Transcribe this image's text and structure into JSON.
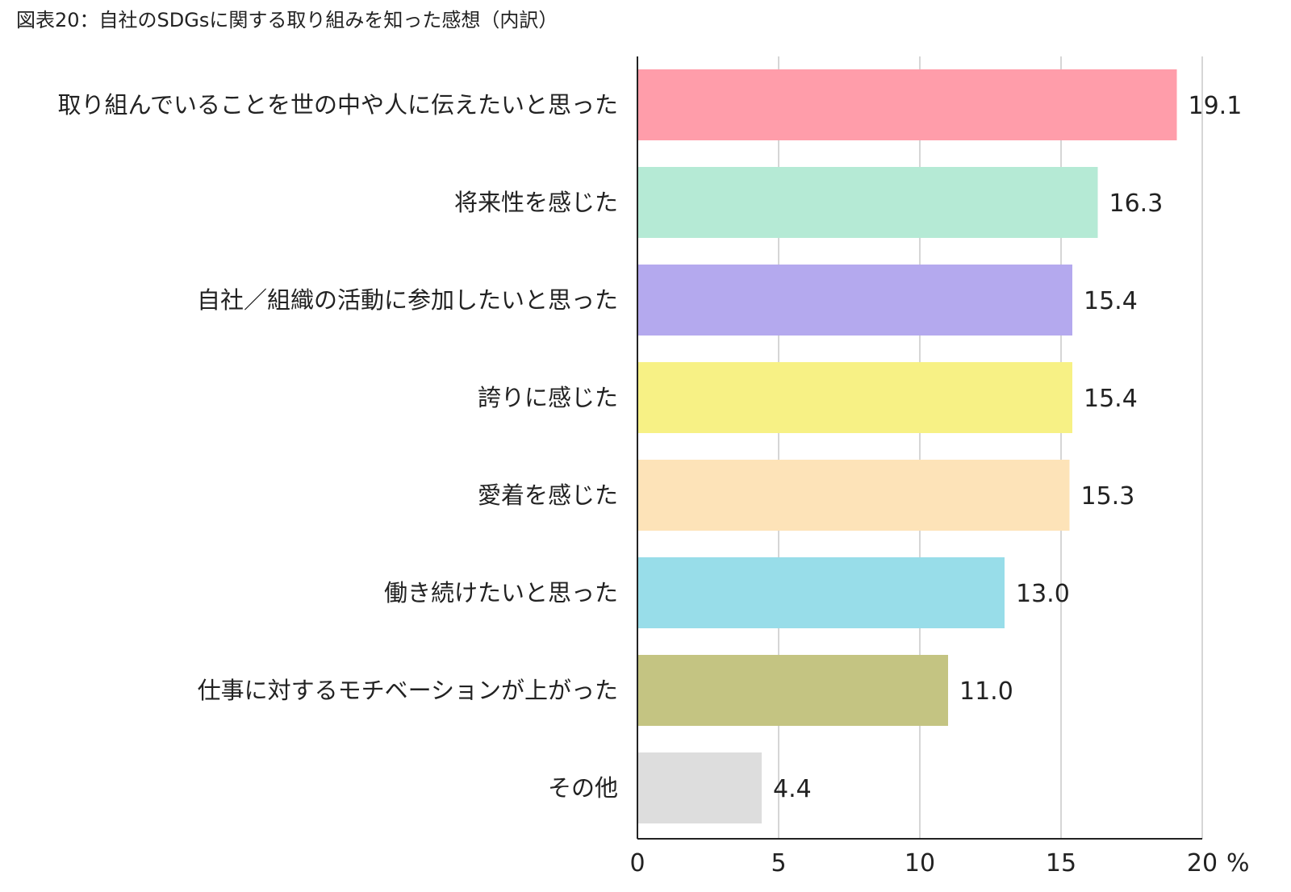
{
  "title": "図表20：自社のSDGsに関する取り組みを知った感想（内訳）",
  "chart_data": {
    "type": "bar",
    "orientation": "horizontal",
    "title": "図表20：自社のSDGsに関する取り組みを知った感想（内訳）",
    "categories": [
      "取り組んでいることを世の中や人に伝えたいと思った",
      "将来性を感じた",
      "自社／組織の活動に参加したいと思った",
      "誇りに感じた",
      "愛着を感じた",
      "働き続けたいと思った",
      "仕事に対するモチベーションが上がった",
      "その他"
    ],
    "values": [
      19.1,
      16.3,
      15.4,
      15.4,
      15.3,
      13.0,
      11.0,
      4.4
    ],
    "value_labels": [
      "19.1",
      "16.3",
      "15.4",
      "15.4",
      "15.3",
      "13.0",
      "11.0",
      "4.4"
    ],
    "colors": [
      "#ff9daa",
      "#b5ead5",
      "#b4a9ee",
      "#f7f185",
      "#fde3b8",
      "#98dde9",
      "#c4c482",
      "#dddddd"
    ],
    "xlim": [
      0,
      20
    ],
    "xticks": [
      0,
      5,
      10,
      15,
      20
    ],
    "xtick_labels": [
      "0",
      "5",
      "10",
      "15",
      "20"
    ],
    "unit": "%",
    "grid": true,
    "xlabel": "",
    "ylabel": ""
  }
}
